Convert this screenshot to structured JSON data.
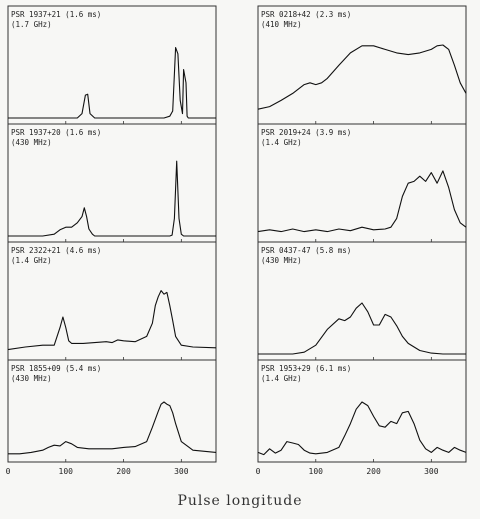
{
  "x_axis_title": "Pulse longitude",
  "chart_data": [
    {
      "type": "line",
      "column": 0,
      "row": 0,
      "label_line1": "PSR 1937+21 (1.6 ms)",
      "label_line2": "(1.7 GHz)",
      "xlim": [
        0,
        360
      ],
      "series": [
        {
          "x": [
            0,
            100,
            120,
            128,
            134,
            138,
            142,
            150,
            200,
            270,
            280,
            285,
            290,
            294,
            298,
            302,
            304,
            308,
            310,
            312,
            316,
            320,
            340,
            360
          ],
          "y": [
            0,
            0,
            0,
            0.05,
            0.26,
            0.27,
            0.05,
            0,
            0,
            0,
            0.02,
            0.08,
            0.8,
            0.73,
            0.2,
            0.05,
            0.55,
            0.4,
            0.02,
            0,
            0,
            0,
            0,
            0
          ]
        }
      ]
    },
    {
      "type": "line",
      "column": 0,
      "row": 1,
      "label_line1": "PSR 1937+20 (1.6 ms)",
      "label_line2": "(430 MHz)",
      "xlim": [
        0,
        360
      ],
      "series": [
        {
          "x": [
            0,
            60,
            80,
            90,
            100,
            110,
            120,
            128,
            132,
            136,
            140,
            146,
            150,
            160,
            200,
            260,
            280,
            284,
            288,
            292,
            296,
            300,
            304,
            330,
            360
          ],
          "y": [
            0,
            0,
            0.02,
            0.07,
            0.1,
            0.1,
            0.15,
            0.22,
            0.32,
            0.22,
            0.08,
            0.02,
            0,
            0,
            0,
            0,
            0,
            0.01,
            0.2,
            0.85,
            0.2,
            0.02,
            0,
            0,
            0
          ]
        }
      ]
    },
    {
      "type": "line",
      "column": 0,
      "row": 2,
      "label_line1": "PSR 2322+21 (4.6 ms)",
      "label_line2": "(1.4 GHz)",
      "xlim": [
        0,
        360
      ],
      "series": [
        {
          "x": [
            0,
            30,
            60,
            80,
            90,
            95,
            100,
            105,
            110,
            130,
            150,
            170,
            180,
            190,
            200,
            220,
            240,
            250,
            255,
            260,
            265,
            270,
            275,
            280,
            285,
            290,
            300,
            320,
            360
          ],
          "y": [
            0.05,
            0.08,
            0.1,
            0.1,
            0.3,
            0.42,
            0.3,
            0.15,
            0.12,
            0.12,
            0.13,
            0.14,
            0.13,
            0.16,
            0.15,
            0.14,
            0.2,
            0.35,
            0.55,
            0.65,
            0.72,
            0.68,
            0.7,
            0.55,
            0.38,
            0.2,
            0.1,
            0.08,
            0.07
          ]
        }
      ]
    },
    {
      "type": "line",
      "column": 0,
      "row": 3,
      "label_line1": "PSR 1855+09 (5.4 ms)",
      "label_line2": "(430 MHz)",
      "xlim": [
        0,
        360
      ],
      "series": [
        {
          "x": [
            0,
            20,
            40,
            60,
            70,
            80,
            90,
            100,
            110,
            120,
            140,
            160,
            180,
            200,
            220,
            240,
            250,
            260,
            265,
            270,
            275,
            280,
            285,
            290,
            300,
            320,
            360
          ],
          "y": [
            0.03,
            0.03,
            0.05,
            0.08,
            0.12,
            0.15,
            0.14,
            0.2,
            0.17,
            0.12,
            0.1,
            0.1,
            0.1,
            0.12,
            0.13,
            0.2,
            0.4,
            0.62,
            0.72,
            0.75,
            0.72,
            0.7,
            0.6,
            0.45,
            0.2,
            0.08,
            0.05
          ]
        }
      ]
    },
    {
      "type": "line",
      "column": 1,
      "row": 0,
      "label_line1": "PSR 0218+42 (2.3 ms)",
      "label_line2": "(410 MHz)",
      "xlim": [
        0,
        360
      ],
      "series": [
        {
          "x": [
            0,
            20,
            40,
            60,
            80,
            90,
            100,
            110,
            120,
            140,
            160,
            180,
            200,
            220,
            240,
            260,
            280,
            300,
            310,
            320,
            330,
            340,
            350,
            360
          ],
          "y": [
            0.1,
            0.13,
            0.2,
            0.28,
            0.38,
            0.4,
            0.38,
            0.4,
            0.45,
            0.6,
            0.74,
            0.82,
            0.82,
            0.78,
            0.74,
            0.72,
            0.74,
            0.78,
            0.82,
            0.83,
            0.78,
            0.6,
            0.4,
            0.28
          ]
        }
      ]
    },
    {
      "type": "line",
      "column": 1,
      "row": 1,
      "label_line1": "PSR 2019+24 (3.9 ms)",
      "label_line2": "(1.4 GHz)",
      "xlim": [
        0,
        360
      ],
      "series": [
        {
          "x": [
            0,
            20,
            40,
            60,
            80,
            100,
            120,
            140,
            160,
            180,
            200,
            220,
            230,
            240,
            250,
            260,
            270,
            280,
            290,
            300,
            310,
            320,
            330,
            340,
            350,
            360
          ],
          "y": [
            0.05,
            0.07,
            0.05,
            0.08,
            0.05,
            0.07,
            0.05,
            0.08,
            0.06,
            0.1,
            0.07,
            0.08,
            0.1,
            0.2,
            0.45,
            0.6,
            0.62,
            0.68,
            0.62,
            0.72,
            0.6,
            0.74,
            0.55,
            0.3,
            0.15,
            0.1
          ]
        }
      ]
    },
    {
      "type": "line",
      "column": 1,
      "row": 2,
      "label_line1": "PSR 0437-47 (5.8 ms)",
      "label_line2": "(430 MHz)",
      "xlim": [
        0,
        360
      ],
      "series": [
        {
          "x": [
            0,
            40,
            60,
            80,
            100,
            120,
            140,
            150,
            160,
            170,
            180,
            190,
            200,
            210,
            220,
            230,
            240,
            250,
            260,
            280,
            300,
            320,
            360
          ],
          "y": [
            0,
            0,
            0,
            0.02,
            0.1,
            0.28,
            0.4,
            0.38,
            0.42,
            0.52,
            0.58,
            0.48,
            0.33,
            0.33,
            0.45,
            0.42,
            0.32,
            0.2,
            0.12,
            0.04,
            0.01,
            0,
            0
          ]
        }
      ]
    },
    {
      "type": "line",
      "column": 1,
      "row": 3,
      "label_line1": "PSR 1953+29 (6.1 ms)",
      "label_line2": "(1.4 GHz)",
      "xlim": [
        0,
        360
      ],
      "series": [
        {
          "x": [
            0,
            10,
            20,
            30,
            40,
            50,
            60,
            70,
            80,
            90,
            100,
            120,
            140,
            150,
            160,
            170,
            180,
            190,
            200,
            210,
            220,
            230,
            240,
            250,
            260,
            270,
            280,
            290,
            300,
            310,
            320,
            330,
            340,
            350,
            360
          ],
          "y": [
            0.05,
            0.02,
            0.1,
            0.04,
            0.08,
            0.2,
            0.18,
            0.16,
            0.08,
            0.04,
            0.03,
            0.05,
            0.12,
            0.28,
            0.45,
            0.65,
            0.75,
            0.7,
            0.55,
            0.42,
            0.4,
            0.48,
            0.45,
            0.6,
            0.62,
            0.45,
            0.22,
            0.1,
            0.05,
            0.12,
            0.08,
            0.05,
            0.12,
            0.08,
            0.05
          ]
        }
      ]
    }
  ],
  "x_ticks": {
    "left": [
      {
        "v": 0,
        "t": "0"
      },
      {
        "v": 100,
        "t": "100"
      },
      {
        "v": 200,
        "t": "200"
      },
      {
        "v": 300,
        "t": "300"
      }
    ],
    "right": [
      {
        "v": 0,
        "t": "0"
      },
      {
        "v": 100,
        "t": "100"
      },
      {
        "v": 200,
        "t": "200"
      },
      {
        "v": 300,
        "t": "300"
      }
    ]
  }
}
